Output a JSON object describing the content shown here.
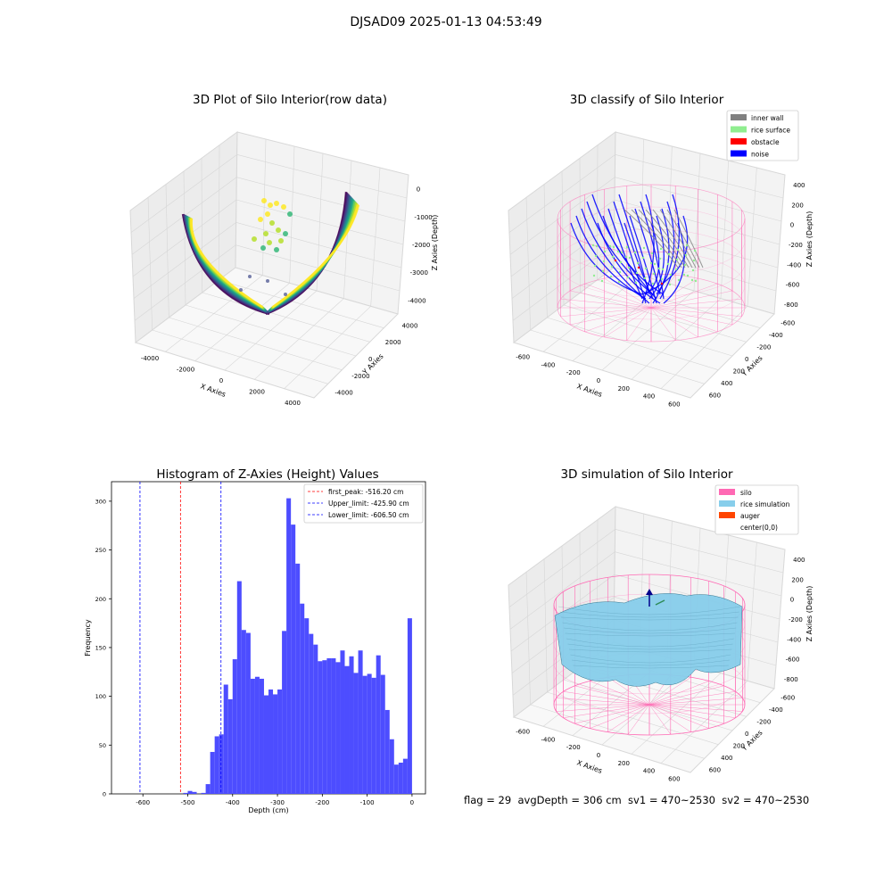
{
  "title": "DJSAD09 2025-01-13 04:53:49",
  "status_line": "flag = 29  avgDepth = 306 cm  sv1 = 470~2530  sv2 = 470~2530",
  "colors": {
    "inner_wall": "#808080",
    "rice_surface": "#90ee90",
    "obstacle": "#ff0000",
    "noise": "#0000ff",
    "silo": "#ff69b4",
    "rice_simulation": "#87ceeb",
    "auger": "#ff4500",
    "histogram_bar": "#4d4dff",
    "first_peak_line": "#ff0000",
    "limit_line": "#0000ff"
  },
  "chart_data": [
    {
      "type": "scatter3d",
      "title": "3D Plot of Silo Interior(row data)",
      "xlabel": "X Axies",
      "ylabel": "Y Axies",
      "zlabel": "Z Axies (Depth)",
      "x_ticks": [
        "-4000",
        "-2000",
        "0",
        "2000",
        "4000"
      ],
      "y_ticks": [
        "-4000",
        "-2000",
        "0",
        "2000",
        "4000"
      ],
      "z_ticks": [
        "0",
        "-1000",
        "-2000",
        "-3000",
        "-4000"
      ],
      "colormap": "viridis"
    },
    {
      "type": "scatter3d",
      "title": "3D classify of Silo Interior",
      "xlabel": "X Axies",
      "ylabel": "Y Axies",
      "zlabel": "Z Axies (Depth)",
      "x_ticks": [
        "-600",
        "-400",
        "-200",
        "0",
        "200",
        "400",
        "600"
      ],
      "y_ticks": [
        "600",
        "400",
        "200",
        "0",
        "-200",
        "-400",
        "-600"
      ],
      "z_ticks": [
        "400",
        "200",
        "0",
        "-200",
        "-400",
        "-600",
        "-800"
      ],
      "legend": [
        "inner wall",
        "rice surface",
        "obstacle",
        "noise"
      ],
      "legend_position": "upper-right"
    },
    {
      "type": "bar",
      "title": "Histogram of Z-Axies (Height) Values",
      "xlabel": "Depth (cm)",
      "ylabel": "Frequency",
      "xlim": [
        -670,
        30
      ],
      "ylim": [
        0,
        320
      ],
      "x_ticks": [
        -600,
        -500,
        -400,
        -300,
        -200,
        -100,
        0
      ],
      "y_ticks": [
        0,
        50,
        100,
        150,
        200,
        250,
        300
      ],
      "bin_width": 10,
      "bin_starts": [
        -650,
        -640,
        -630,
        -620,
        -610,
        -600,
        -590,
        -580,
        -570,
        -560,
        -550,
        -540,
        -530,
        -520,
        -510,
        -500,
        -490,
        -480,
        -470,
        -460,
        -450,
        -440,
        -430,
        -420,
        -410,
        -400,
        -390,
        -380,
        -370,
        -360,
        -350,
        -340,
        -330,
        -320,
        -310,
        -300,
        -290,
        -280,
        -270,
        -260,
        -250,
        -240,
        -230,
        -220,
        -210,
        -200,
        -190,
        -180,
        -170,
        -160,
        -150,
        -140,
        -130,
        -120,
        -110,
        -100,
        -90,
        -80,
        -70,
        -60,
        -50,
        -40,
        -30,
        -20,
        -10
      ],
      "values": [
        1,
        3,
        2,
        0,
        1,
        10,
        43,
        59,
        61,
        112,
        97,
        138,
        218,
        168,
        165,
        118,
        120,
        118,
        101,
        107,
        102,
        107,
        167,
        303,
        276,
        236,
        195,
        180,
        164,
        153,
        136,
        137,
        139,
        139,
        135,
        147,
        131,
        141,
        124,
        147,
        121,
        123,
        119,
        142,
        122,
        86,
        56,
        30,
        32,
        36,
        180
      ],
      "value_bin_offset": 14,
      "lines": [
        {
          "label": "first_peak: -516.20 cm",
          "x": -516.2,
          "color": "#ff0000"
        },
        {
          "label": "Upper_limit: -425.90 cm",
          "x": -425.9,
          "color": "#0000ff"
        },
        {
          "label": "Lower_limit: -606.50 cm",
          "x": -606.5,
          "color": "#0000ff"
        }
      ],
      "legend_position": "upper-right"
    },
    {
      "type": "surface3d",
      "title": "3D simulation of Silo Interior",
      "xlabel": "X Axies",
      "ylabel": "Y Axies",
      "zlabel": "Z Axies (Depth)",
      "x_ticks": [
        "-600",
        "-400",
        "-200",
        "0",
        "200",
        "400",
        "600"
      ],
      "y_ticks": [
        "600",
        "400",
        "200",
        "0",
        "-200",
        "-400",
        "-600"
      ],
      "z_ticks": [
        "400",
        "200",
        "0",
        "-200",
        "-400",
        "-600",
        "-800"
      ],
      "legend": [
        "silo",
        "rice simulation",
        "auger",
        "center(0,0)"
      ],
      "legend_position": "upper-right"
    }
  ]
}
